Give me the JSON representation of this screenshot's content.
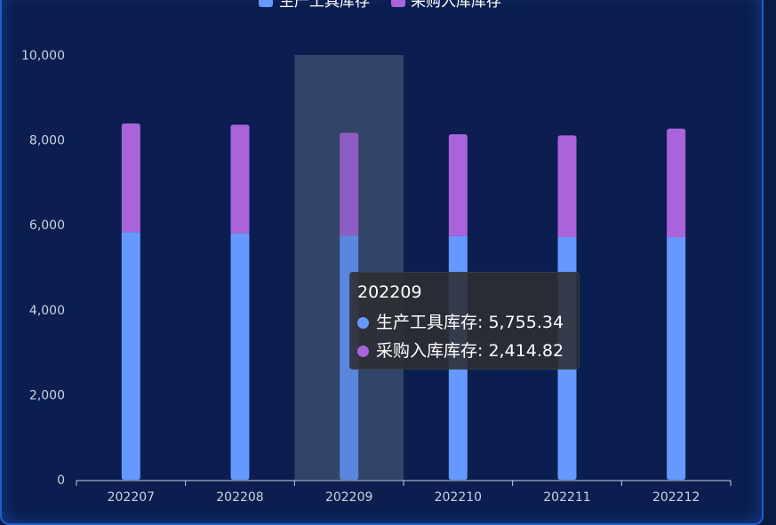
{
  "chart_data": {
    "type": "bar",
    "stacked": true,
    "categories": [
      "202207",
      "202208",
      "202209",
      "202210",
      "202211",
      "202212"
    ],
    "series": [
      {
        "name": "生产工具库存",
        "color": "#6699ff",
        "values": [
          5830,
          5800,
          5755.34,
          5735,
          5710,
          5710
        ]
      },
      {
        "name": "采购入库库存",
        "color": "#a964dc",
        "values": [
          2560,
          2560,
          2414.82,
          2400,
          2400,
          2560
        ]
      }
    ],
    "ylim": [
      0,
      10000
    ],
    "yticks": [
      "0",
      "2,000",
      "4,000",
      "6,000",
      "8,000",
      "10,000"
    ],
    "legend_position": "top-center",
    "highlight_category": "202209",
    "tooltip": {
      "title": "202209",
      "rows": [
        {
          "label": "生产工具库存: 5,755.34",
          "color": "#6699ff"
        },
        {
          "label": "采购入库库存: 2,414.82",
          "color": "#a964dc"
        }
      ]
    }
  }
}
